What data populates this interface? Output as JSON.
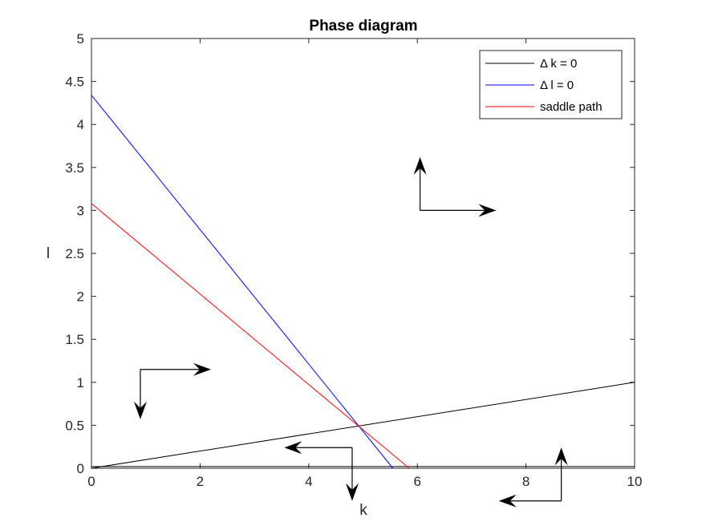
{
  "chart_data": {
    "type": "line",
    "title": "Phase diagram",
    "xlabel": "k",
    "ylabel": "l",
    "xlim": [
      0,
      10
    ],
    "ylim": [
      0,
      5
    ],
    "xticks": [
      0,
      2,
      4,
      6,
      8,
      10
    ],
    "xtick_labels": [
      "0",
      "2",
      "4",
      "6",
      "8",
      "10"
    ],
    "yticks": [
      0,
      0.5,
      1,
      1.5,
      2,
      2.5,
      3,
      3.5,
      4,
      4.5,
      5
    ],
    "ytick_labels": [
      "0",
      "0.5",
      "1",
      "1.5",
      "2",
      "2.5",
      "3",
      "3.5",
      "4",
      "4.5",
      "5"
    ],
    "grid": false,
    "legend_position": "top-right",
    "series": [
      {
        "name": "Δ k = 0",
        "color": "#000000",
        "x": [
          0,
          10
        ],
        "y": [
          0,
          1
        ]
      },
      {
        "name": "Δ l = 0",
        "color": "#0000ff",
        "x": [
          0,
          5.55
        ],
        "y": [
          4.34,
          0
        ]
      },
      {
        "name": "saddle path",
        "color": "#ff0000",
        "x": [
          0,
          5.85
        ],
        "y": [
          3.08,
          0
        ]
      }
    ],
    "baseline": {
      "color": "#000000",
      "x": [
        0,
        10
      ],
      "y": [
        0.02,
        0.02
      ]
    },
    "arrows": [
      {
        "region": "upper-right",
        "origin": [
          6.05,
          3.0
        ],
        "horizontal_to": [
          7.45,
          3.0
        ],
        "vertical_to": [
          6.05,
          3.62
        ]
      },
      {
        "region": "left",
        "origin": [
          0.9,
          1.15
        ],
        "horizontal_to": [
          2.2,
          1.15
        ],
        "vertical_to": [
          0.9,
          0.57
        ]
      },
      {
        "region": "lower-middle",
        "origin": [
          4.8,
          0.24
        ],
        "horizontal_to": [
          3.55,
          0.24
        ],
        "vertical_to": [
          4.8,
          -0.38
        ]
      },
      {
        "region": "lower-right",
        "origin": [
          8.65,
          -0.38
        ],
        "horizontal_to": [
          7.5,
          -0.38
        ],
        "vertical_to": [
          8.65,
          0.24
        ]
      }
    ]
  }
}
